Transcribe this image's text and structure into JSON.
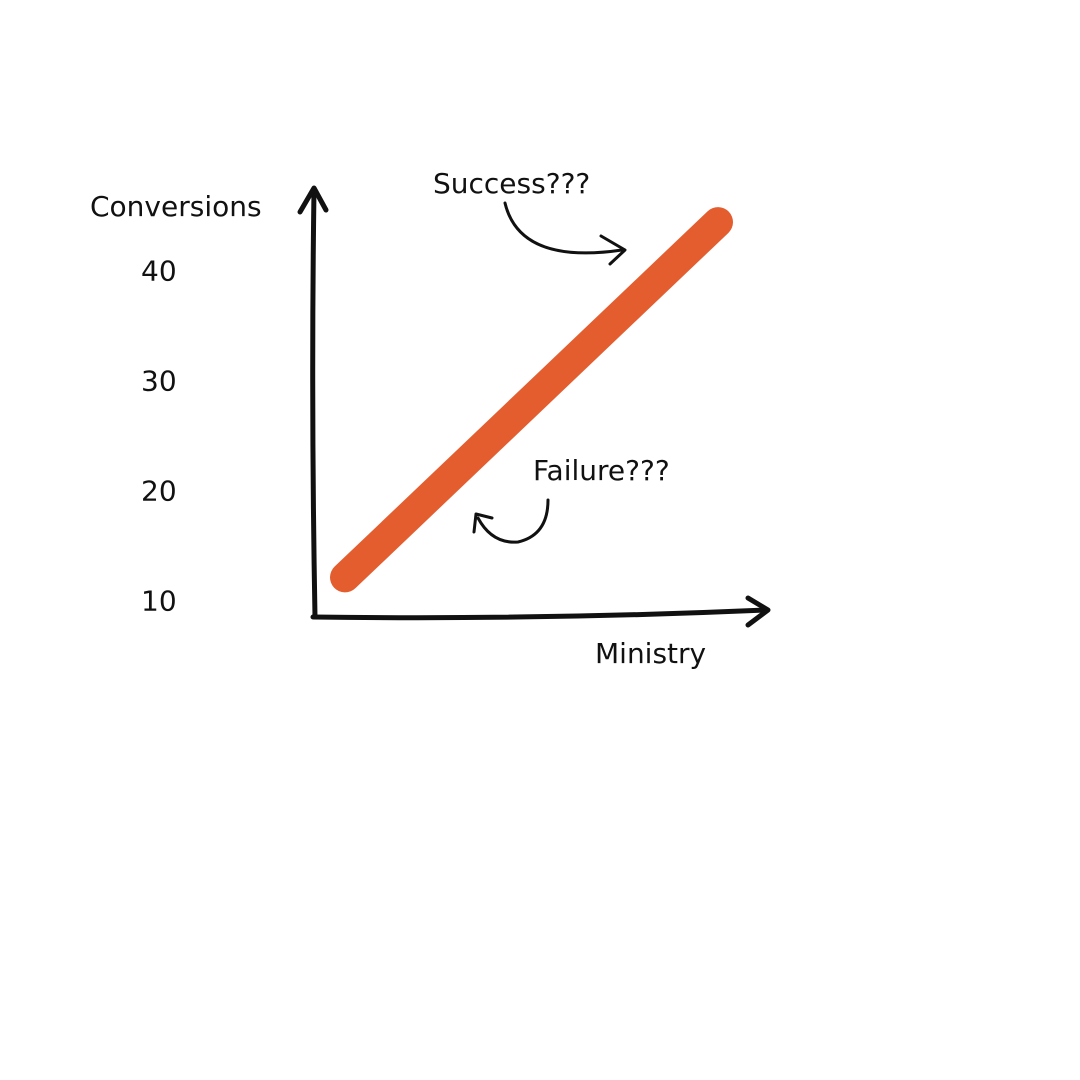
{
  "chart_data": {
    "type": "line",
    "categories": [
      null,
      null
    ],
    "values": [
      12.3,
      44.6
    ],
    "color": "#e35d2f",
    "ylabel": "Conversions",
    "xlabel": "Ministry",
    "ylim": [
      8.7,
      47.7
    ],
    "yticks": [
      10,
      20,
      30,
      40
    ],
    "grid": false,
    "annotations": [
      "Success???",
      "Failure???"
    ]
  }
}
